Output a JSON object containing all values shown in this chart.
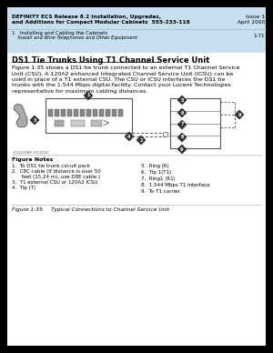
{
  "header_bg": "#c8dff0",
  "header_line1_bold": "DEFINITY ECS Release 8.2 Installation, Upgrades,",
  "header_line2_bold": "and Additions for Compact Modular Cabinets  555-233-118",
  "header_right1": "Issue 1",
  "header_right2": "April 2000",
  "header_sub1": "1   Installing and Cabling the Cabinets",
  "header_sub2": "    Install and Wire Telephones and Other Equipment",
  "header_sub_right": "1-71",
  "body_bg": "#ffffff",
  "page_bg": "#000000",
  "section_title": "DS1 Tie Trunks Using T1 Channel Service Unit",
  "body_text": "Figure 1-35 shows a DS1 tie trunk connected to an external T1 Channel Service\nUnit (CSU). A 120A2 enhanced Integrated Channel Service Unit (ICSU) can be\nused in place of a T1 external CSU. The CSU or ICSU interfaces the DS1 tie\ntrunks with the 1.544 Mbps digital facility. Contact your Lucent Technologies\nrepresentative for maximum cabling distances.",
  "figure_notes_title": "Figure Notes",
  "figure_notes_left": [
    "1.  To DS1 tie trunk circuit pack",
    "2.  C8C cable (if distance is over 50",
    "      feet (15.24 m), use D8E cable.)",
    "3.  T1 external CSU or 120A2 ICSU",
    "4.  Tip (T)"
  ],
  "figure_notes_right": [
    "5.  Ring (R)",
    "6.  Tip 1(T1)",
    "7.  Ring1 (R1)",
    "8.  1.544 Mbps T1 interface",
    "9.  To T1 carrier"
  ],
  "figure_caption": "Figure 1-35.    Typical Connections to Channel Service Unit",
  "image_label": "D012LRBF-07/2007"
}
